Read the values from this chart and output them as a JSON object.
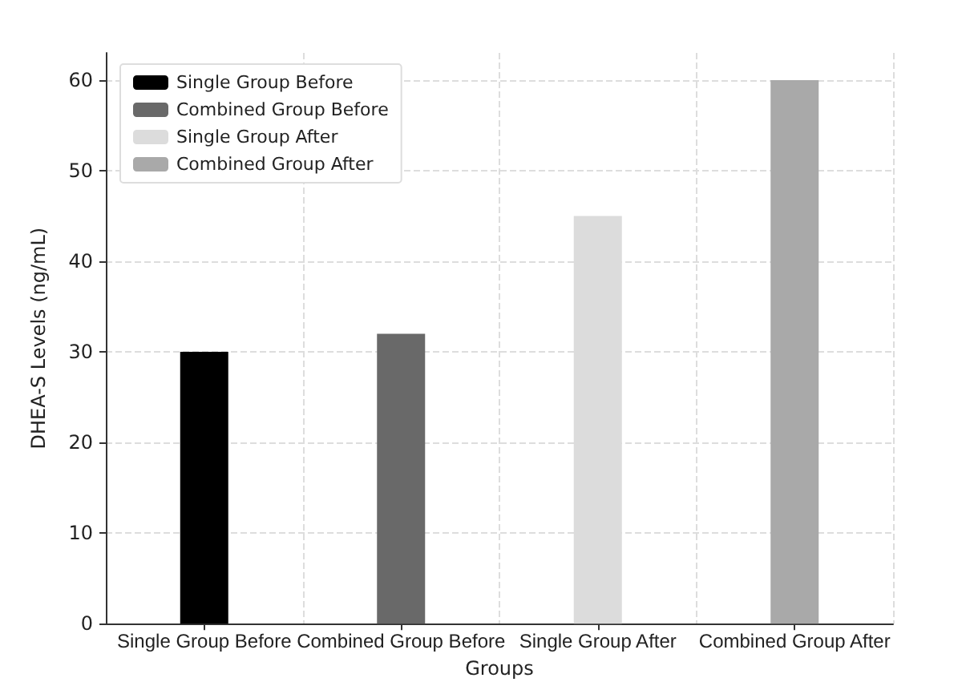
{
  "chart_data": {
    "type": "bar",
    "xlabel": "Groups",
    "ylabel": "DHEA-S Levels (ng/mL)",
    "categories": [
      "Single Group Before",
      "Combined Group Before",
      "Single Group After",
      "Combined Group After"
    ],
    "series": [
      {
        "name": "Single Group Before",
        "color": "#000000",
        "values": [
          30,
          null,
          null,
          null
        ]
      },
      {
        "name": "Combined Group Before",
        "color": "#696969",
        "values": [
          null,
          32,
          null,
          null
        ]
      },
      {
        "name": "Single Group After",
        "color": "#dcdcdc",
        "values": [
          null,
          null,
          45,
          null
        ]
      },
      {
        "name": "Combined Group After",
        "color": "#a9a9a9",
        "values": [
          null,
          null,
          null,
          60
        ]
      }
    ],
    "ylim": [
      0,
      63
    ],
    "yticks": [
      0,
      10,
      20,
      30,
      40,
      50,
      60
    ],
    "grid": true,
    "legend": "top left"
  }
}
